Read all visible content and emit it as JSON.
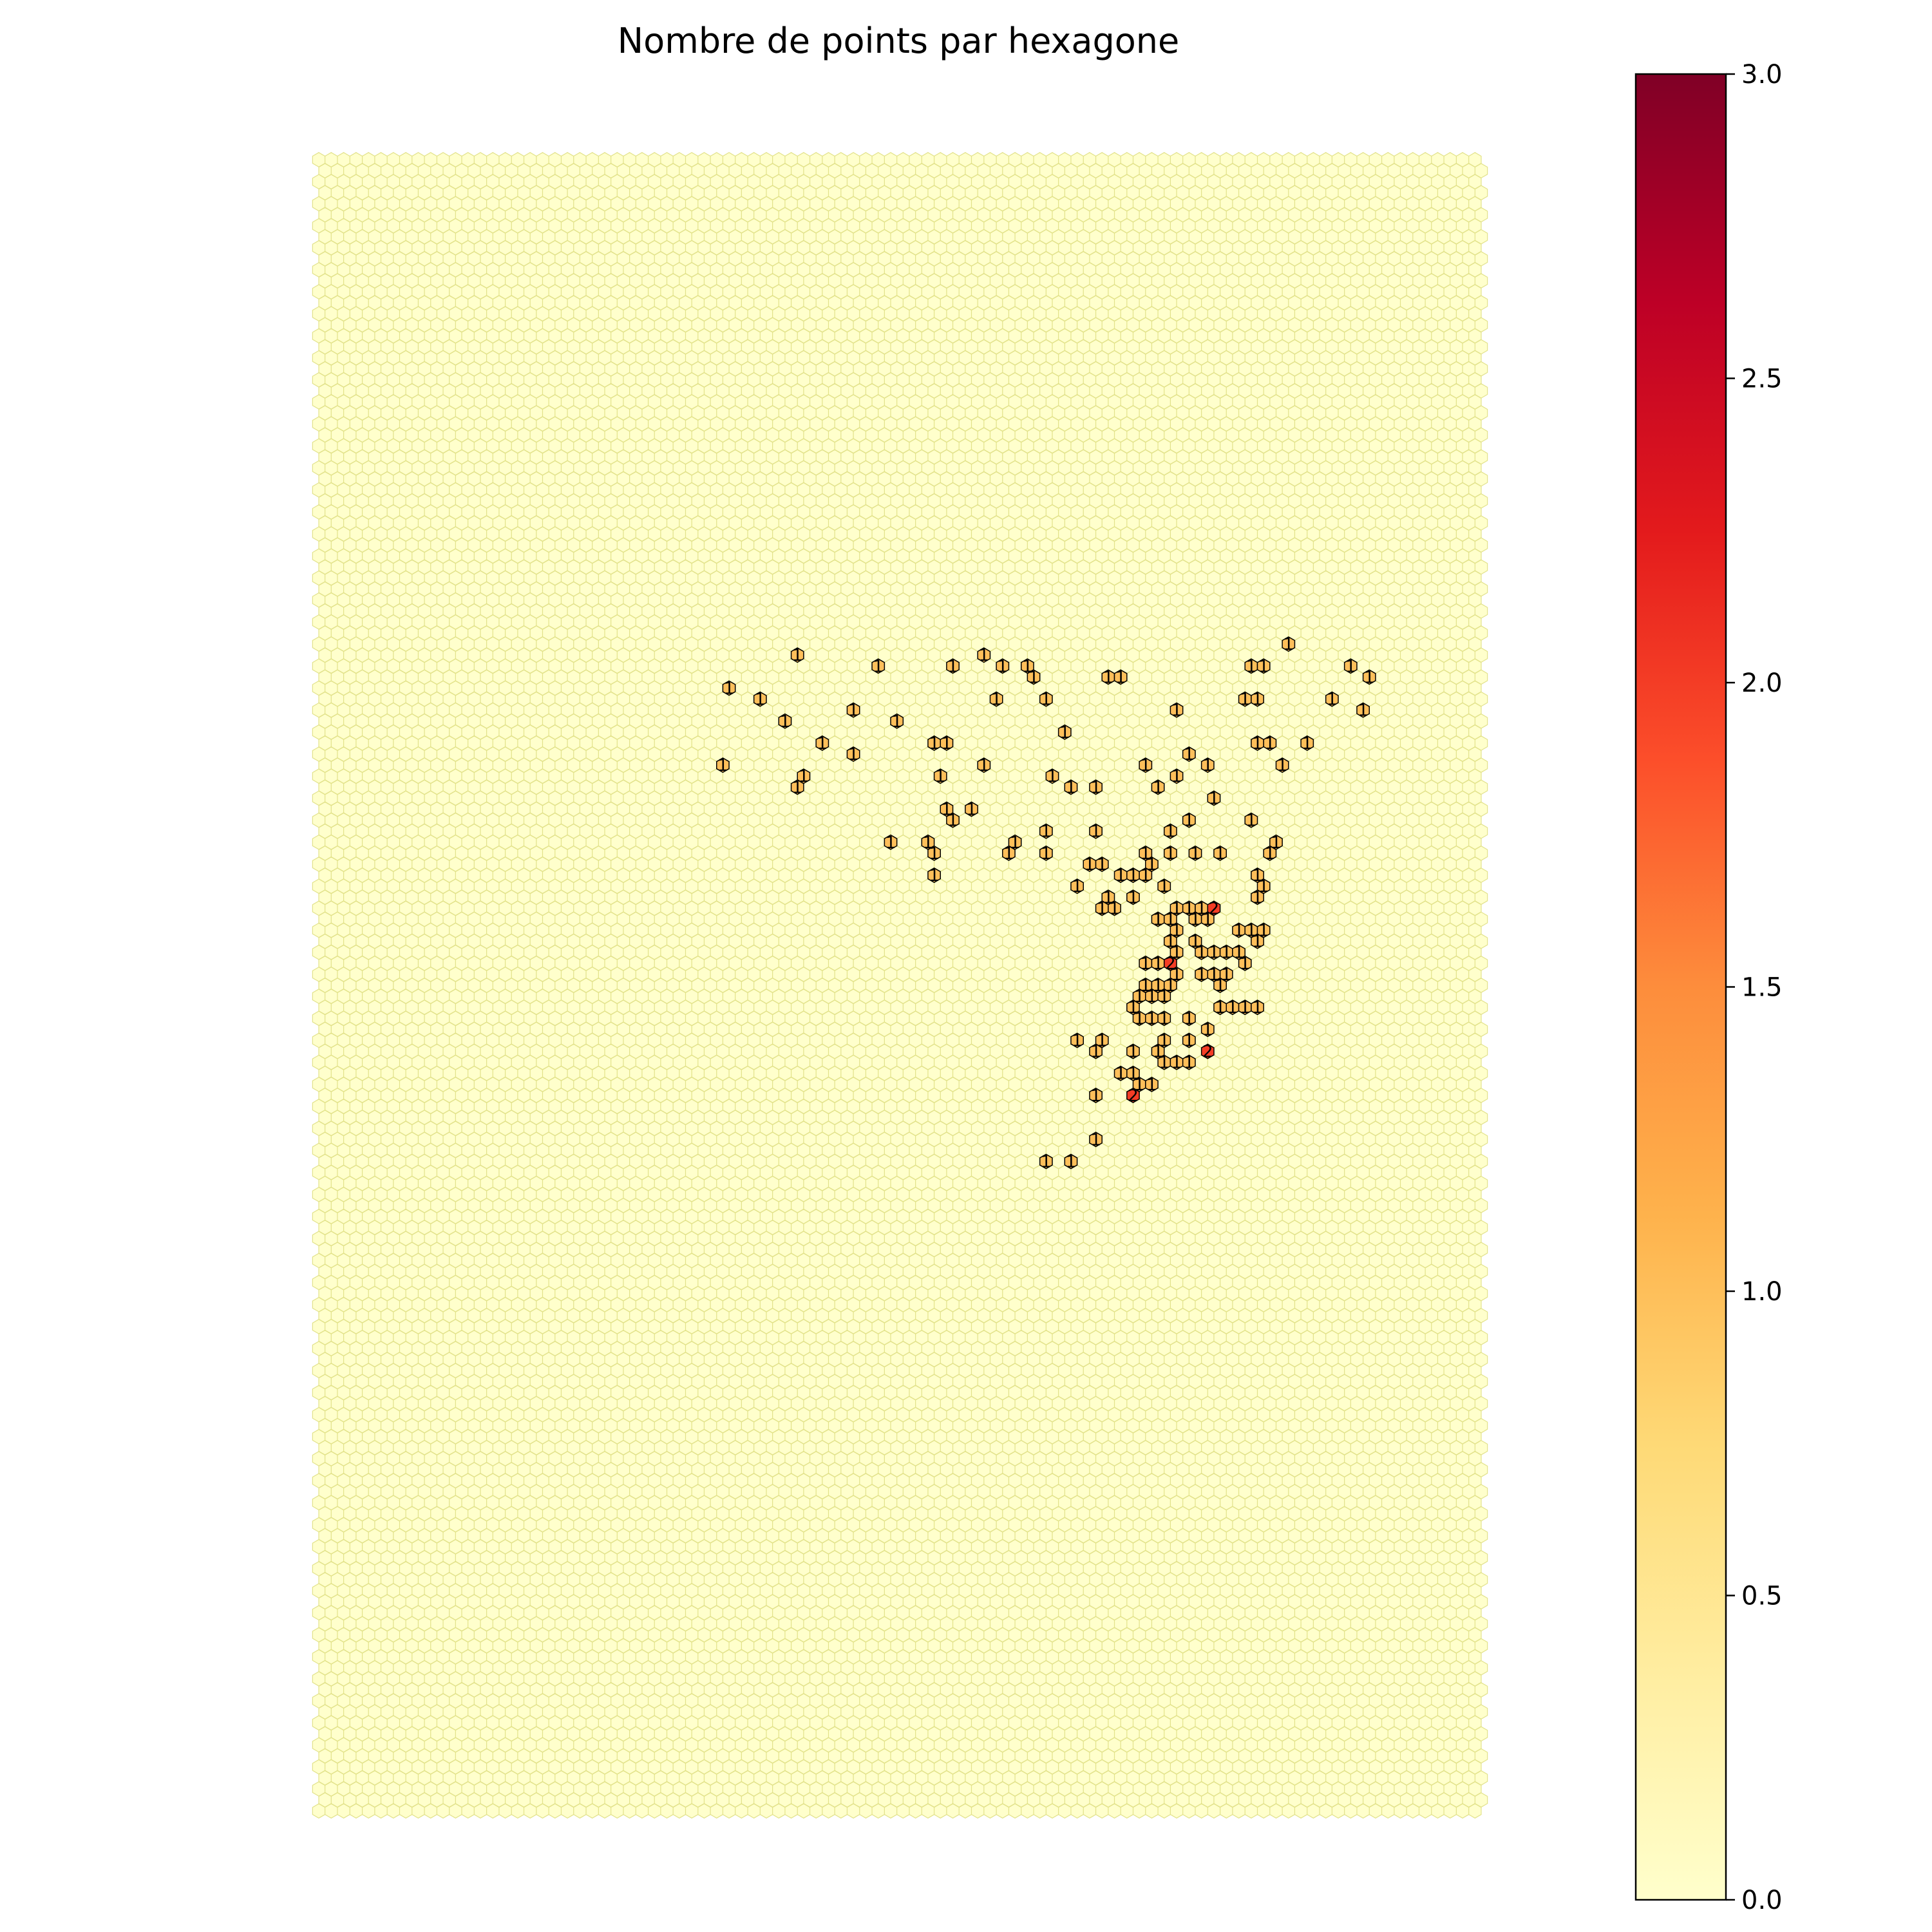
{
  "chart_data": {
    "type": "heatmap",
    "subtype": "hexbin",
    "title": "Nombre de points par hexagone",
    "xlabel": "",
    "ylabel": "",
    "axes_visible": false,
    "grid": false,
    "colormap": "YlOrRd",
    "colorbar": {
      "position": "right",
      "min": 0.0,
      "max": 3.0,
      "ticks": [
        0.0,
        0.5,
        1.0,
        1.5,
        2.0,
        2.5,
        3.0
      ],
      "tick_labels": [
        "0.0",
        "0.5",
        "1.0",
        "1.5",
        "2.0",
        "2.5",
        "3.0"
      ],
      "colors": [
        "#ffffcc",
        "#ffeda0",
        "#fed976",
        "#feb24c",
        "#fd8d3c",
        "#fc4e2a",
        "#e31a1c",
        "#bd0026",
        "#800026"
      ]
    },
    "grid_size": {
      "columns": 94,
      "rows": 151
    },
    "empty_value": 0,
    "empty_color": "#ffffcc",
    "empty_edge_color": "#e2e28a",
    "count_label_color": "#000000",
    "cells": [
      {
        "col": 38,
        "row": 45,
        "value": 1
      },
      {
        "col": 45,
        "row": 46,
        "value": 1
      },
      {
        "col": 53,
        "row": 45,
        "value": 1
      },
      {
        "col": 51,
        "row": 46,
        "value": 1
      },
      {
        "col": 55,
        "row": 46,
        "value": 1
      },
      {
        "col": 57,
        "row": 46,
        "value": 1
      },
      {
        "col": 57,
        "row": 47,
        "value": 1
      },
      {
        "col": 63,
        "row": 47,
        "value": 1
      },
      {
        "col": 64,
        "row": 47,
        "value": 1
      },
      {
        "col": 75,
        "row": 46,
        "value": 1
      },
      {
        "col": 76,
        "row": 46,
        "value": 1
      },
      {
        "col": 78,
        "row": 44,
        "value": 1
      },
      {
        "col": 83,
        "row": 46,
        "value": 1
      },
      {
        "col": 84,
        "row": 47,
        "value": 1
      },
      {
        "col": 33,
        "row": 48,
        "value": 1
      },
      {
        "col": 35,
        "row": 49,
        "value": 1
      },
      {
        "col": 43,
        "row": 50,
        "value": 1
      },
      {
        "col": 54,
        "row": 49,
        "value": 1
      },
      {
        "col": 58,
        "row": 49,
        "value": 1
      },
      {
        "col": 69,
        "row": 50,
        "value": 1
      },
      {
        "col": 74,
        "row": 49,
        "value": 1
      },
      {
        "col": 75,
        "row": 49,
        "value": 1
      },
      {
        "col": 81,
        "row": 49,
        "value": 1
      },
      {
        "col": 84,
        "row": 50,
        "value": 1
      },
      {
        "col": 37,
        "row": 51,
        "value": 1
      },
      {
        "col": 46,
        "row": 51,
        "value": 1
      },
      {
        "col": 40,
        "row": 53,
        "value": 1
      },
      {
        "col": 43,
        "row": 54,
        "value": 1
      },
      {
        "col": 49,
        "row": 53,
        "value": 1
      },
      {
        "col": 50,
        "row": 53,
        "value": 1
      },
      {
        "col": 60,
        "row": 52,
        "value": 1
      },
      {
        "col": 75,
        "row": 53,
        "value": 1
      },
      {
        "col": 76,
        "row": 53,
        "value": 1
      },
      {
        "col": 79,
        "row": 53,
        "value": 1
      },
      {
        "col": 32,
        "row": 55,
        "value": 1
      },
      {
        "col": 53,
        "row": 55,
        "value": 1
      },
      {
        "col": 66,
        "row": 55,
        "value": 1
      },
      {
        "col": 70,
        "row": 54,
        "value": 1
      },
      {
        "col": 71,
        "row": 55,
        "value": 1
      },
      {
        "col": 77,
        "row": 55,
        "value": 1
      },
      {
        "col": 38,
        "row": 57,
        "value": 1
      },
      {
        "col": 39,
        "row": 56,
        "value": 1
      },
      {
        "col": 50,
        "row": 56,
        "value": 1
      },
      {
        "col": 59,
        "row": 56,
        "value": 1
      },
      {
        "col": 60,
        "row": 57,
        "value": 1
      },
      {
        "col": 62,
        "row": 57,
        "value": 1
      },
      {
        "col": 67,
        "row": 57,
        "value": 1
      },
      {
        "col": 69,
        "row": 56,
        "value": 1
      },
      {
        "col": 50,
        "row": 59,
        "value": 1
      },
      {
        "col": 51,
        "row": 60,
        "value": 1
      },
      {
        "col": 52,
        "row": 59,
        "value": 1
      },
      {
        "col": 72,
        "row": 58,
        "value": 1
      },
      {
        "col": 46,
        "row": 62,
        "value": 1
      },
      {
        "col": 49,
        "row": 62,
        "value": 1
      },
      {
        "col": 56,
        "row": 62,
        "value": 1
      },
      {
        "col": 58,
        "row": 61,
        "value": 1
      },
      {
        "col": 62,
        "row": 61,
        "value": 1
      },
      {
        "col": 68,
        "row": 61,
        "value": 1
      },
      {
        "col": 70,
        "row": 60,
        "value": 1
      },
      {
        "col": 75,
        "row": 60,
        "value": 1
      },
      {
        "col": 49,
        "row": 63,
        "value": 1
      },
      {
        "col": 55,
        "row": 63,
        "value": 1
      },
      {
        "col": 58,
        "row": 63,
        "value": 1
      },
      {
        "col": 62,
        "row": 64,
        "value": 1
      },
      {
        "col": 63,
        "row": 64,
        "value": 1
      },
      {
        "col": 66,
        "row": 63,
        "value": 1
      },
      {
        "col": 68,
        "row": 63,
        "value": 1
      },
      {
        "col": 70,
        "row": 63,
        "value": 1
      },
      {
        "col": 72,
        "row": 63,
        "value": 1
      },
      {
        "col": 76,
        "row": 63,
        "value": 1
      },
      {
        "col": 77,
        "row": 62,
        "value": 1
      },
      {
        "col": 49,
        "row": 65,
        "value": 1
      },
      {
        "col": 61,
        "row": 66,
        "value": 1
      },
      {
        "col": 64,
        "row": 65,
        "value": 1
      },
      {
        "col": 65,
        "row": 65,
        "value": 1
      },
      {
        "col": 66,
        "row": 65,
        "value": 1
      },
      {
        "col": 67,
        "row": 64,
        "value": 1
      },
      {
        "col": 68,
        "row": 66,
        "value": 1
      },
      {
        "col": 75,
        "row": 65,
        "value": 1
      },
      {
        "col": 76,
        "row": 66,
        "value": 1
      },
      {
        "col": 63,
        "row": 67,
        "value": 1
      },
      {
        "col": 63,
        "row": 68,
        "value": 1
      },
      {
        "col": 64,
        "row": 68,
        "value": 1
      },
      {
        "col": 65,
        "row": 67,
        "value": 1
      },
      {
        "col": 69,
        "row": 68,
        "value": 1
      },
      {
        "col": 70,
        "row": 68,
        "value": 1
      },
      {
        "col": 71,
        "row": 68,
        "value": 1
      },
      {
        "col": 72,
        "row": 68,
        "value": 2
      },
      {
        "col": 75,
        "row": 67,
        "value": 1
      },
      {
        "col": 67,
        "row": 69,
        "value": 1
      },
      {
        "col": 68,
        "row": 69,
        "value": 1
      },
      {
        "col": 69,
        "row": 70,
        "value": 1
      },
      {
        "col": 70,
        "row": 69,
        "value": 1
      },
      {
        "col": 71,
        "row": 69,
        "value": 1
      },
      {
        "col": 74,
        "row": 70,
        "value": 1
      },
      {
        "col": 75,
        "row": 70,
        "value": 1
      },
      {
        "col": 76,
        "row": 70,
        "value": 1
      },
      {
        "col": 68,
        "row": 71,
        "value": 1
      },
      {
        "col": 69,
        "row": 72,
        "value": 1
      },
      {
        "col": 70,
        "row": 71,
        "value": 1
      },
      {
        "col": 71,
        "row": 72,
        "value": 1
      },
      {
        "col": 72,
        "row": 72,
        "value": 1
      },
      {
        "col": 73,
        "row": 72,
        "value": 1
      },
      {
        "col": 74,
        "row": 72,
        "value": 1
      },
      {
        "col": 75,
        "row": 71,
        "value": 1
      },
      {
        "col": 66,
        "row": 73,
        "value": 1
      },
      {
        "col": 67,
        "row": 73,
        "value": 1
      },
      {
        "col": 68,
        "row": 73,
        "value": 2
      },
      {
        "col": 69,
        "row": 74,
        "value": 1
      },
      {
        "col": 71,
        "row": 74,
        "value": 1
      },
      {
        "col": 72,
        "row": 74,
        "value": 1
      },
      {
        "col": 73,
        "row": 74,
        "value": 1
      },
      {
        "col": 74,
        "row": 73,
        "value": 1
      },
      {
        "col": 66,
        "row": 75,
        "value": 1
      },
      {
        "col": 67,
        "row": 75,
        "value": 1
      },
      {
        "col": 68,
        "row": 75,
        "value": 1
      },
      {
        "col": 72,
        "row": 75,
        "value": 1
      },
      {
        "col": 66,
        "row": 76,
        "value": 1
      },
      {
        "col": 67,
        "row": 76,
        "value": 1
      },
      {
        "col": 68,
        "row": 76,
        "value": 1
      },
      {
        "col": 72,
        "row": 77,
        "value": 1
      },
      {
        "col": 73,
        "row": 77,
        "value": 1
      },
      {
        "col": 74,
        "row": 77,
        "value": 1
      },
      {
        "col": 75,
        "row": 77,
        "value": 1
      },
      {
        "col": 65,
        "row": 77,
        "value": 1
      },
      {
        "col": 66,
        "row": 78,
        "value": 1
      },
      {
        "col": 67,
        "row": 78,
        "value": 1
      },
      {
        "col": 68,
        "row": 78,
        "value": 1
      },
      {
        "col": 70,
        "row": 78,
        "value": 1
      },
      {
        "col": 71,
        "row": 79,
        "value": 1
      },
      {
        "col": 61,
        "row": 80,
        "value": 1
      },
      {
        "col": 62,
        "row": 81,
        "value": 1
      },
      {
        "col": 63,
        "row": 80,
        "value": 1
      },
      {
        "col": 65,
        "row": 81,
        "value": 1
      },
      {
        "col": 67,
        "row": 81,
        "value": 1
      },
      {
        "col": 68,
        "row": 80,
        "value": 1
      },
      {
        "col": 70,
        "row": 80,
        "value": 1
      },
      {
        "col": 71,
        "row": 81,
        "value": 2
      },
      {
        "col": 68,
        "row": 82,
        "value": 1
      },
      {
        "col": 69,
        "row": 82,
        "value": 1
      },
      {
        "col": 70,
        "row": 82,
        "value": 1
      },
      {
        "col": 64,
        "row": 83,
        "value": 1
      },
      {
        "col": 65,
        "row": 83,
        "value": 1
      },
      {
        "col": 66,
        "row": 84,
        "value": 1
      },
      {
        "col": 67,
        "row": 84,
        "value": 1
      },
      {
        "col": 62,
        "row": 85,
        "value": 1
      },
      {
        "col": 65,
        "row": 85,
        "value": 2
      },
      {
        "col": 62,
        "row": 89,
        "value": 1
      },
      {
        "col": 60,
        "row": 91,
        "value": 1
      },
      {
        "col": 58,
        "row": 91,
        "value": 1
      }
    ]
  }
}
